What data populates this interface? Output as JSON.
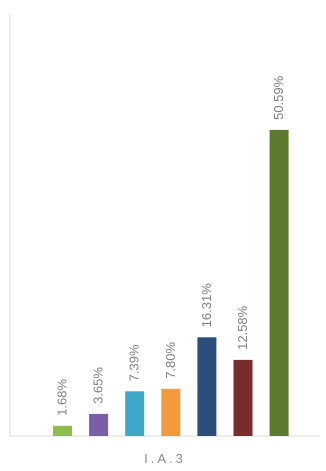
{
  "chart_data": {
    "type": "bar",
    "title": "",
    "xlabel": "",
    "ylabel": "",
    "categories": [
      "I.A.3"
    ],
    "ylim": [
      0,
      60
    ],
    "series": [
      {
        "value": 1.68,
        "label": "1.68%",
        "color": "#8fbc4b"
      },
      {
        "value": 3.65,
        "label": "3.65%",
        "color": "#7a5fa8"
      },
      {
        "value": 7.39,
        "label": "7.39%",
        "color": "#3fa8c8"
      },
      {
        "value": 7.8,
        "label": "7.80%",
        "color": "#f39a3d"
      },
      {
        "value": 16.31,
        "label": "16.31%",
        "color": "#2b4f7a"
      },
      {
        "value": 12.58,
        "label": "12.58%",
        "color": "#7a2c2c"
      },
      {
        "value": 50.59,
        "label": "50.59%",
        "color": "#5e7a2e"
      }
    ],
    "grid": false,
    "legend": "none",
    "axis_color": "#d9d9d9"
  }
}
